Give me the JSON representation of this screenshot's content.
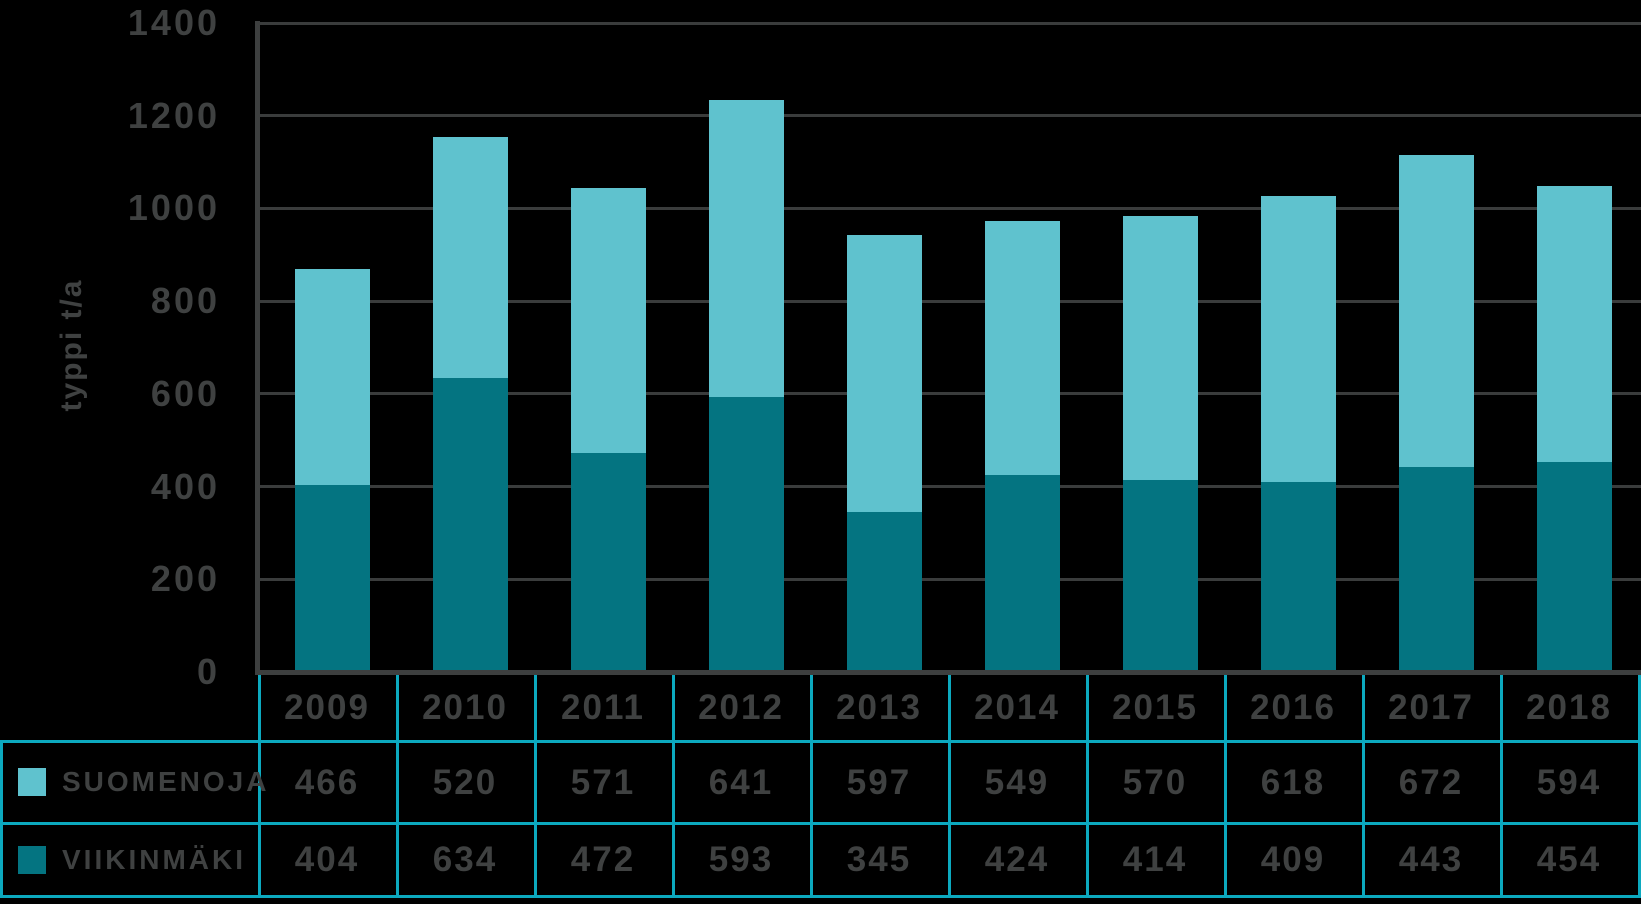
{
  "colors": {
    "background": "#000000",
    "suomenoja_bar": "#5fc2ce",
    "viikinmaki_bar": "#047481",
    "table_border": "#0ca9bf",
    "text": "#3f4141",
    "gridline": "#3a3c3c",
    "axis": "#3d3f3f"
  },
  "chart_data": {
    "type": "bar",
    "stacked": true,
    "title": "",
    "xlabel": "",
    "ylabel": "typpi t/a",
    "ylim": [
      0,
      1400
    ],
    "ytick_step": 200,
    "ytick_labels": [
      "0",
      "200",
      "400",
      "600",
      "800",
      "1000",
      "1200",
      "1400"
    ],
    "grid": true,
    "legend_position": "table-rows-left",
    "categories": [
      "2009",
      "2010",
      "2011",
      "2012",
      "2013",
      "2014",
      "2015",
      "2016",
      "2017",
      "2018"
    ],
    "series": [
      {
        "name": "SUOMENOJA",
        "color_key": "suomenoja_bar",
        "stack_position": "top",
        "values": [
          466,
          520,
          571,
          641,
          597,
          549,
          570,
          618,
          672,
          594
        ]
      },
      {
        "name": "VIIKINMÄKI",
        "color_key": "viikinmaki_bar",
        "stack_position": "bottom",
        "values": [
          404,
          634,
          472,
          593,
          345,
          424,
          414,
          409,
          443,
          454
        ]
      }
    ]
  }
}
